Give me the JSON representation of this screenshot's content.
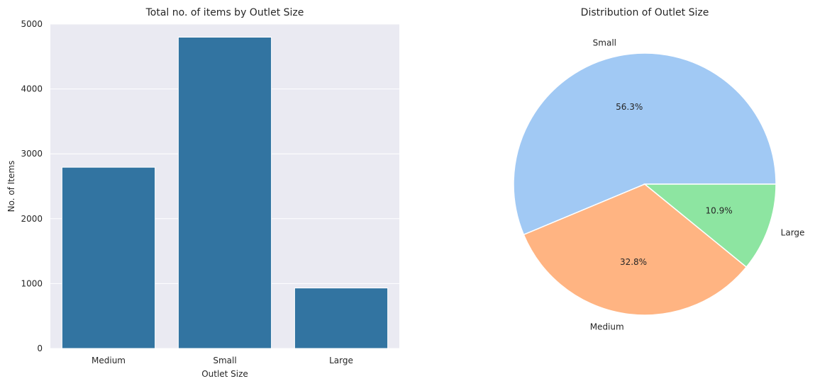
{
  "chart_data": [
    {
      "type": "bar",
      "title": "Total no. of items by Outlet Size",
      "xlabel": "Outlet Size",
      "ylabel": "No. of Items",
      "categories": [
        "Medium",
        "Small",
        "Large"
      ],
      "values": [
        2793,
        4798,
        932
      ],
      "ylim": [
        0,
        5000
      ],
      "yticks": [
        0,
        1000,
        2000,
        3000,
        4000,
        5000
      ],
      "grid": true,
      "bar_color": "#3274a1",
      "background_color": "#eaeaf2"
    },
    {
      "type": "pie",
      "title": "Distribution of Outlet Size",
      "labels": [
        "Small",
        "Medium",
        "Large"
      ],
      "values": [
        56.3,
        32.8,
        10.9
      ],
      "pct_labels": [
        "56.3%",
        "32.8%",
        "10.9%"
      ],
      "colors": [
        "#a1c9f4",
        "#ffb482",
        "#8de5a1"
      ]
    }
  ]
}
